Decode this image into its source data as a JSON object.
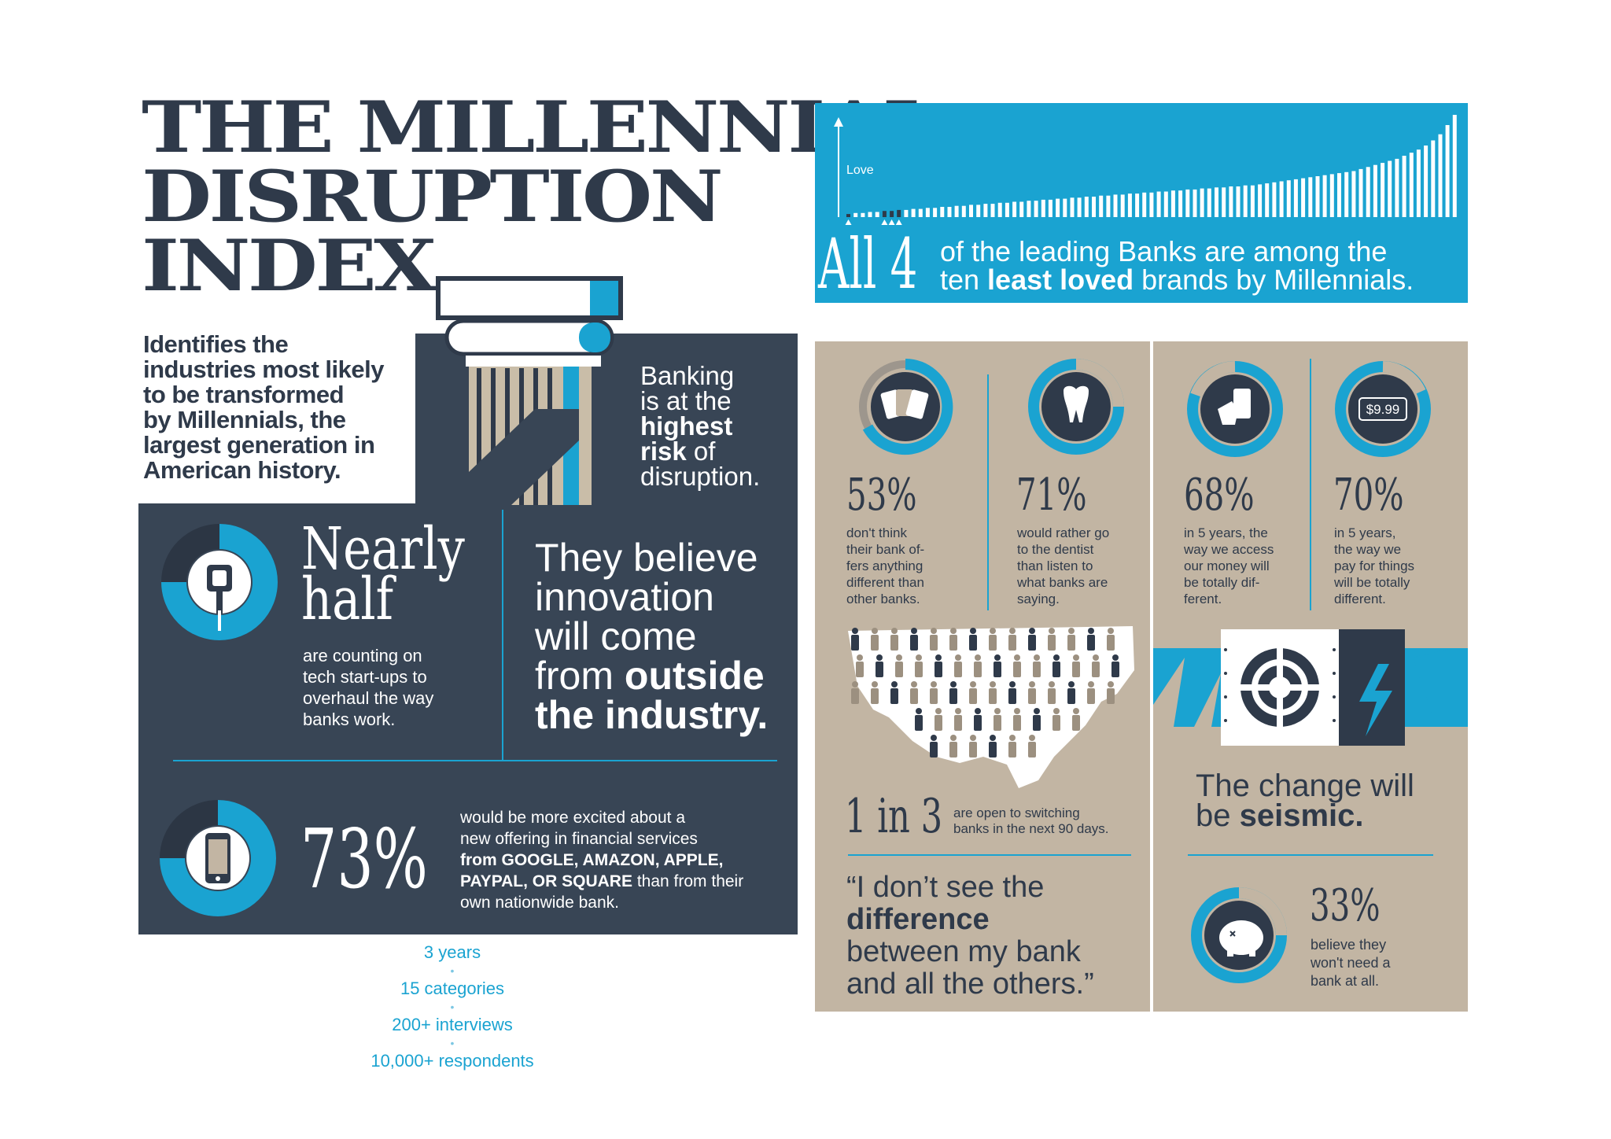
{
  "header": {
    "title_lines": [
      "THE MILLENNIAL",
      "DISRUPTION",
      "INDEX"
    ],
    "subtitle_lines": [
      "Identifies the",
      "industries most likely",
      "to be transformed",
      "by Millennials, the",
      "largest generation in",
      "American history."
    ]
  },
  "banking": {
    "line1": "Banking",
    "line2": "is at the",
    "line3_bold": "highest",
    "line4_bold": "risk",
    "line4_rest": " of",
    "line5": "disruption."
  },
  "nearly_half": {
    "big": [
      "Nearly",
      "half"
    ],
    "desc": [
      "are counting on",
      "tech start-ups to",
      "overhaul the way",
      "banks work."
    ]
  },
  "innovation": {
    "lines": [
      "They believe",
      "innovation",
      "will come"
    ],
    "line4_normal": "from ",
    "line4_bold": "outside",
    "line5_bold": "the industry."
  },
  "stat73": {
    "value": "73%",
    "desc_lines": [
      "would be more excited about a",
      "new offering in financial services"
    ],
    "line3_bold": "from GOOGLE, AMAZON, APPLE,",
    "line4_bold": "PAYPAL, OR SQUARE",
    "line4_rest": " than from their",
    "line5": "own nationwide bank."
  },
  "stats_list": [
    "3 years",
    "15 categories",
    "200+ interviews",
    "10,000+ respondents"
  ],
  "chart_data": {
    "type": "bar",
    "ylabel": "Love",
    "big_text": "All 4",
    "caption_line1": "of the leading Banks are among the",
    "caption_line2_pre": "ten ",
    "caption_line2_bold": "least loved",
    "caption_line2_post": " brands by Millennials.",
    "highlighted_bars": [
      0,
      5,
      6,
      7
    ],
    "values": [
      3,
      4,
      4,
      5,
      5,
      6,
      6,
      7,
      7,
      8,
      8,
      9,
      9,
      10,
      10,
      11,
      11,
      12,
      12,
      13,
      13,
      14,
      14,
      15,
      15,
      16,
      16,
      17,
      17,
      18,
      18,
      19,
      19,
      20,
      20,
      21,
      21,
      22,
      22,
      23,
      23,
      24,
      24,
      25,
      25,
      26,
      26,
      27,
      27,
      28,
      28,
      29,
      29,
      30,
      30,
      31,
      31,
      32,
      33,
      34,
      35,
      36,
      37,
      38,
      39,
      40,
      41,
      42,
      43,
      44,
      45,
      47,
      49,
      51,
      53,
      55,
      57,
      60,
      63,
      66,
      70,
      75,
      81,
      90,
      100
    ]
  },
  "tan_stats": [
    {
      "pct": "53%",
      "desc": [
        "don't think",
        "their bank of-",
        "fers anything",
        "different than",
        "other banks."
      ],
      "icon": "cards-icon"
    },
    {
      "pct": "71%",
      "desc": [
        "would rather go",
        "to the dentist",
        "than listen to",
        "what banks are",
        "saying."
      ],
      "icon": "tooth-icon"
    },
    {
      "pct": "68%",
      "desc": [
        "in 5 years, the",
        "way we access",
        "our money will",
        "be totally dif-",
        "ferent."
      ],
      "icon": "hand-phone-icon"
    },
    {
      "pct": "70%",
      "desc": [
        "in 5 years,",
        "the way we",
        "pay for things",
        "will be totally",
        "different."
      ],
      "icon": "price-tag-icon",
      "tag": "$9.99"
    }
  ],
  "switching": {
    "big": "1 in 3",
    "desc": [
      "are open to switching",
      "banks in the next 90 days."
    ]
  },
  "quote": {
    "line1": "“I don’t see the",
    "line2_bold": "difference",
    "line3": "between my bank",
    "line4": "and all the others.”"
  },
  "seismic": {
    "line1": "The change will",
    "line2_pre": "be ",
    "line2_bold": "seismic."
  },
  "stat33": {
    "pct": "33%",
    "desc": [
      "believe they",
      "won't need a",
      "bank at all."
    ]
  },
  "colors": {
    "navy": "#384555",
    "accent_blue": "#1aa3d1",
    "tan": "#c2b5a3",
    "dark_text": "#2f3a4a"
  }
}
